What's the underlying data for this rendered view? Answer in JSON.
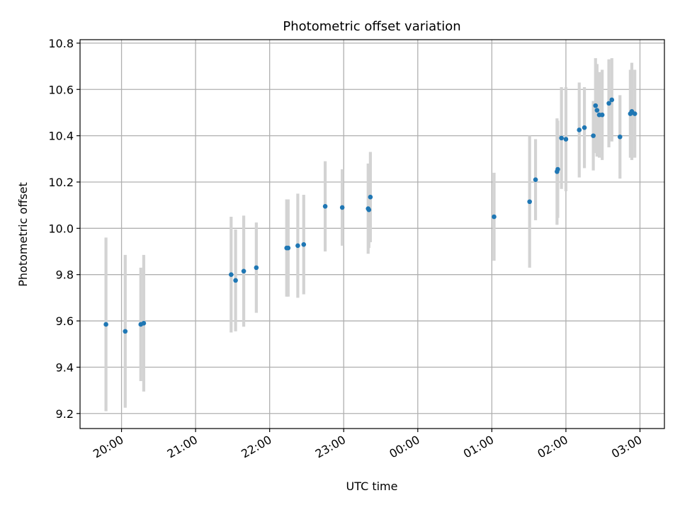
{
  "chart_data": {
    "type": "scatter",
    "title": "Photometric offset variation",
    "xlabel": "UTC time",
    "ylabel": "Photometric offset",
    "x_unit": "hours relative to 00:00 UTC",
    "xlim": [
      -4.56,
      3.33
    ],
    "ylim": [
      9.135,
      10.815
    ],
    "grid": true,
    "yticks": [
      9.2,
      9.4,
      9.6,
      9.8,
      10.0,
      10.2,
      10.4,
      10.6,
      10.8
    ],
    "ytick_labels": [
      "9.2",
      "9.4",
      "9.6",
      "9.8",
      "10.0",
      "10.2",
      "10.4",
      "10.6",
      "10.8"
    ],
    "xticks": [
      -4,
      -3,
      -2,
      -1,
      0,
      1,
      2,
      3
    ],
    "xtick_labels": [
      "20:00",
      "21:00",
      "22:00",
      "23:00",
      "00:00",
      "01:00",
      "02:00",
      "03:00"
    ],
    "colors": {
      "points": "#1f77b4",
      "errorbars": "#d3d3d3"
    },
    "series": [
      {
        "name": "offset",
        "points": [
          {
            "x": -4.21,
            "y": 9.585,
            "err": 0.375
          },
          {
            "x": -3.95,
            "y": 9.555,
            "err": 0.33
          },
          {
            "x": -3.74,
            "y": 9.585,
            "err": 0.245
          },
          {
            "x": -3.7,
            "y": 9.59,
            "err": 0.295
          },
          {
            "x": -2.52,
            "y": 9.8,
            "err": 0.25
          },
          {
            "x": -2.46,
            "y": 9.775,
            "err": 0.22
          },
          {
            "x": -2.35,
            "y": 9.815,
            "err": 0.24
          },
          {
            "x": -2.18,
            "y": 9.83,
            "err": 0.195
          },
          {
            "x": -1.77,
            "y": 9.915,
            "err": 0.21
          },
          {
            "x": -1.75,
            "y": 9.915,
            "err": 0.21
          },
          {
            "x": -1.62,
            "y": 9.925,
            "err": 0.225
          },
          {
            "x": -1.54,
            "y": 9.93,
            "err": 0.215
          },
          {
            "x": -1.25,
            "y": 10.095,
            "err": 0.195
          },
          {
            "x": -1.02,
            "y": 10.09,
            "err": 0.165
          },
          {
            "x": -0.67,
            "y": 10.085,
            "err": 0.195
          },
          {
            "x": -0.66,
            "y": 10.08,
            "err": 0.165
          },
          {
            "x": -0.64,
            "y": 10.135,
            "err": 0.195
          },
          {
            "x": 1.03,
            "y": 10.05,
            "err": 0.19
          },
          {
            "x": 1.51,
            "y": 10.115,
            "err": 0.285
          },
          {
            "x": 1.59,
            "y": 10.21,
            "err": 0.175
          },
          {
            "x": 1.88,
            "y": 10.245,
            "err": 0.23
          },
          {
            "x": 1.89,
            "y": 10.255,
            "err": 0.21
          },
          {
            "x": 1.94,
            "y": 10.39,
            "err": 0.22
          },
          {
            "x": 2.0,
            "y": 10.385,
            "err": 0.225
          },
          {
            "x": 2.18,
            "y": 10.425,
            "err": 0.205
          },
          {
            "x": 2.25,
            "y": 10.435,
            "err": 0.175
          },
          {
            "x": 2.37,
            "y": 10.4,
            "err": 0.15
          },
          {
            "x": 2.4,
            "y": 10.53,
            "err": 0.205
          },
          {
            "x": 2.42,
            "y": 10.51,
            "err": 0.2
          },
          {
            "x": 2.45,
            "y": 10.49,
            "err": 0.185
          },
          {
            "x": 2.49,
            "y": 10.49,
            "err": 0.195
          },
          {
            "x": 2.58,
            "y": 10.54,
            "err": 0.19
          },
          {
            "x": 2.62,
            "y": 10.555,
            "err": 0.18
          },
          {
            "x": 2.73,
            "y": 10.395,
            "err": 0.18
          },
          {
            "x": 2.87,
            "y": 10.495,
            "err": 0.19
          },
          {
            "x": 2.89,
            "y": 10.505,
            "err": 0.21
          },
          {
            "x": 2.93,
            "y": 10.495,
            "err": 0.19
          }
        ]
      }
    ]
  }
}
